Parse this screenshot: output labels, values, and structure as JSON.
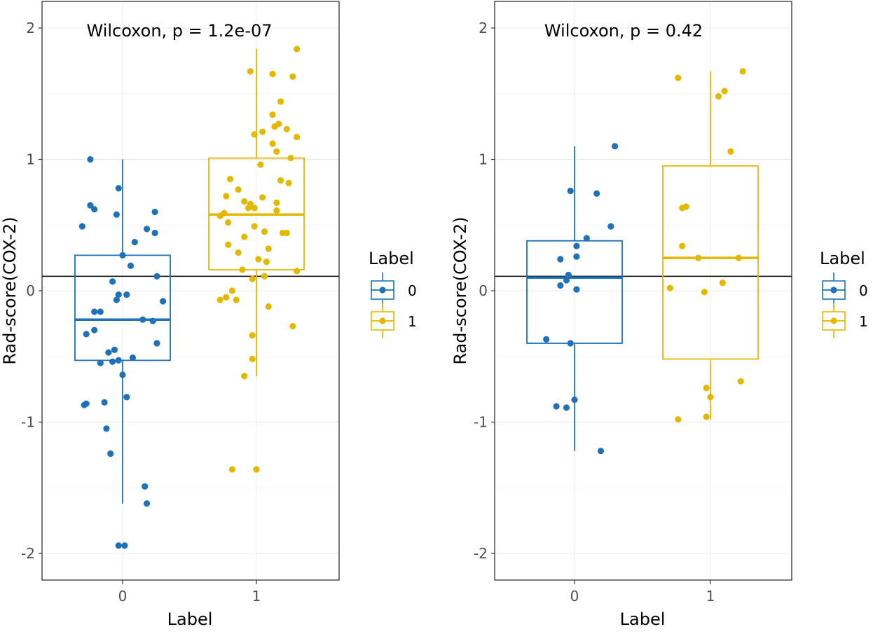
{
  "chart_data": [
    {
      "type": "boxplot",
      "annotation": "Wilcoxon, p = 1.2e-07",
      "xlabel": "Label",
      "ylabel": "Rad-score(COX-2)",
      "ylim": [
        -2.2,
        2.1
      ],
      "yticks": [
        -2,
        -1,
        0,
        1,
        2
      ],
      "ytick_labels": [
        "-2",
        "-1",
        "0",
        "1",
        "2"
      ],
      "categories": [
        "0",
        "1"
      ],
      "reference_line": 0.11,
      "groups": [
        {
          "label": "0",
          "color": "#1f72b8",
          "q1": -0.53,
          "median": -0.22,
          "q3": 0.27,
          "whisker_low": -1.62,
          "whisker_high": 1.0,
          "points": [
            {
              "j": -0.16,
              "y": 1.0
            },
            {
              "j": -0.02,
              "y": 0.78
            },
            {
              "j": -0.16,
              "y": 0.65
            },
            {
              "j": -0.14,
              "y": 0.62
            },
            {
              "j": -0.03,
              "y": 0.58
            },
            {
              "j": 0.16,
              "y": 0.6
            },
            {
              "j": -0.2,
              "y": 0.49
            },
            {
              "j": 0.12,
              "y": 0.47
            },
            {
              "j": 0.16,
              "y": 0.44
            },
            {
              "j": 0.06,
              "y": 0.37
            },
            {
              "j": 0.0,
              "y": 0.27
            },
            {
              "j": 0.04,
              "y": 0.19
            },
            {
              "j": 0.17,
              "y": 0.11
            },
            {
              "j": -0.05,
              "y": 0.07
            },
            {
              "j": -0.02,
              "y": -0.03
            },
            {
              "j": 0.02,
              "y": -0.03
            },
            {
              "j": -0.03,
              "y": -0.07
            },
            {
              "j": 0.2,
              "y": -0.08
            },
            {
              "j": -0.14,
              "y": -0.16
            },
            {
              "j": -0.11,
              "y": -0.16
            },
            {
              "j": 0.1,
              "y": -0.22
            },
            {
              "j": 0.15,
              "y": -0.23
            },
            {
              "j": -0.14,
              "y": -0.3
            },
            {
              "j": -0.18,
              "y": -0.33
            },
            {
              "j": 0.17,
              "y": -0.4
            },
            {
              "j": -0.04,
              "y": -0.45
            },
            {
              "j": -0.07,
              "y": -0.47
            },
            {
              "j": 0.05,
              "y": -0.51
            },
            {
              "j": -0.11,
              "y": -0.55
            },
            {
              "j": -0.02,
              "y": -0.53
            },
            {
              "j": -0.05,
              "y": -0.54
            },
            {
              "j": 0.0,
              "y": -0.64
            },
            {
              "j": 0.02,
              "y": -0.81
            },
            {
              "j": -0.09,
              "y": -0.85
            },
            {
              "j": -0.18,
              "y": -0.86
            },
            {
              "j": -0.19,
              "y": -0.87
            },
            {
              "j": -0.08,
              "y": -1.05
            },
            {
              "j": -0.06,
              "y": -1.24
            },
            {
              "j": 0.11,
              "y": -1.49
            },
            {
              "j": 0.12,
              "y": -1.62
            },
            {
              "j": -0.02,
              "y": -1.94
            },
            {
              "j": 0.01,
              "y": -1.94
            }
          ]
        },
        {
          "label": "1",
          "color": "#e5b800",
          "q1": 0.16,
          "median": 0.58,
          "q3": 1.01,
          "whisker_low": -0.65,
          "whisker_high": 1.84,
          "points": [
            {
              "j": 0.2,
              "y": 1.84
            },
            {
              "j": -0.03,
              "y": 1.67
            },
            {
              "j": 0.08,
              "y": 1.65
            },
            {
              "j": 0.18,
              "y": 1.63
            },
            {
              "j": 0.12,
              "y": 1.44
            },
            {
              "j": 0.08,
              "y": 1.34
            },
            {
              "j": 0.11,
              "y": 1.27
            },
            {
              "j": 0.09,
              "y": 1.25
            },
            {
              "j": 0.15,
              "y": 1.23
            },
            {
              "j": 0.03,
              "y": 1.21
            },
            {
              "j": -0.01,
              "y": 1.19
            },
            {
              "j": 0.2,
              "y": 1.17
            },
            {
              "j": 0.08,
              "y": 1.12
            },
            {
              "j": 0.1,
              "y": 1.06
            },
            {
              "j": 0.17,
              "y": 1.01
            },
            {
              "j": 0.02,
              "y": 0.96
            },
            {
              "j": -0.13,
              "y": 0.85
            },
            {
              "j": 0.12,
              "y": 0.84
            },
            {
              "j": 0.16,
              "y": 0.82
            },
            {
              "j": -0.09,
              "y": 0.77
            },
            {
              "j": -0.15,
              "y": 0.72
            },
            {
              "j": 0.03,
              "y": 0.71
            },
            {
              "j": -0.06,
              "y": 0.68
            },
            {
              "j": 0.1,
              "y": 0.67
            },
            {
              "j": -0.03,
              "y": 0.66
            },
            {
              "j": -0.01,
              "y": 0.63
            },
            {
              "j": -0.04,
              "y": 0.63
            },
            {
              "j": 0.1,
              "y": 0.61
            },
            {
              "j": -0.16,
              "y": 0.59
            },
            {
              "j": -0.18,
              "y": 0.57
            },
            {
              "j": -0.14,
              "y": 0.52
            },
            {
              "j": -0.01,
              "y": 0.49
            },
            {
              "j": 0.04,
              "y": 0.45
            },
            {
              "j": 0.13,
              "y": 0.44
            },
            {
              "j": 0.15,
              "y": 0.44
            },
            {
              "j": -0.06,
              "y": 0.41
            },
            {
              "j": -0.14,
              "y": 0.35
            },
            {
              "j": 0.06,
              "y": 0.32
            },
            {
              "j": -0.09,
              "y": 0.29
            },
            {
              "j": 0.01,
              "y": 0.24
            },
            {
              "j": 0.05,
              "y": 0.22
            },
            {
              "j": -0.07,
              "y": 0.16
            },
            {
              "j": 0.2,
              "y": 0.15
            },
            {
              "j": 0.04,
              "y": 0.11
            },
            {
              "j": -0.02,
              "y": 0.09
            },
            {
              "j": -0.12,
              "y": 0.0
            },
            {
              "j": -0.15,
              "y": -0.05
            },
            {
              "j": -0.18,
              "y": -0.07
            },
            {
              "j": -0.1,
              "y": -0.07
            },
            {
              "j": 0.06,
              "y": -0.12
            },
            {
              "j": 0.18,
              "y": -0.27
            },
            {
              "j": -0.02,
              "y": -0.34
            },
            {
              "j": -0.02,
              "y": -0.52
            },
            {
              "j": -0.06,
              "y": -0.65
            },
            {
              "j": -0.12,
              "y": -1.36
            },
            {
              "j": 0.0,
              "y": -1.36
            }
          ]
        }
      ],
      "legend": {
        "title": "Label",
        "entries": [
          "0",
          "1"
        ],
        "position": "right"
      }
    },
    {
      "type": "boxplot",
      "annotation": "Wilcoxon, p = 0.42",
      "xlabel": "Label",
      "ylabel": "Rad-score(COX-2)",
      "ylim": [
        -2.2,
        2.1
      ],
      "yticks": [
        -2,
        -1,
        0,
        1,
        2
      ],
      "ytick_labels": [
        "-2",
        "-1",
        "0",
        "1",
        "2"
      ],
      "categories": [
        "0",
        "1"
      ],
      "reference_line": 0.11,
      "groups": [
        {
          "label": "0",
          "color": "#1f72b8",
          "q1": -0.4,
          "median": 0.1,
          "q3": 0.38,
          "whisker_low": -1.22,
          "whisker_high": 1.1,
          "points": [
            {
              "j": 0.2,
              "y": 1.1
            },
            {
              "j": -0.02,
              "y": 0.76
            },
            {
              "j": 0.11,
              "y": 0.74
            },
            {
              "j": 0.18,
              "y": 0.49
            },
            {
              "j": 0.06,
              "y": 0.4
            },
            {
              "j": 0.01,
              "y": 0.34
            },
            {
              "j": 0.01,
              "y": 0.26
            },
            {
              "j": -0.07,
              "y": 0.24
            },
            {
              "j": -0.03,
              "y": 0.12
            },
            {
              "j": -0.04,
              "y": 0.08
            },
            {
              "j": -0.07,
              "y": 0.04
            },
            {
              "j": 0.01,
              "y": 0.01
            },
            {
              "j": -0.14,
              "y": -0.37
            },
            {
              "j": -0.02,
              "y": -0.4
            },
            {
              "j": 0.0,
              "y": -0.83
            },
            {
              "j": -0.09,
              "y": -0.88
            },
            {
              "j": -0.04,
              "y": -0.89
            },
            {
              "j": 0.13,
              "y": -1.22
            }
          ]
        },
        {
          "label": "1",
          "color": "#e5b800",
          "q1": -0.52,
          "median": 0.25,
          "q3": 0.95,
          "whisker_low": -0.98,
          "whisker_high": 1.67,
          "points": [
            {
              "j": 0.16,
              "y": 1.67
            },
            {
              "j": -0.16,
              "y": 1.62
            },
            {
              "j": 0.07,
              "y": 1.52
            },
            {
              "j": 0.04,
              "y": 1.48
            },
            {
              "j": 0.1,
              "y": 1.06
            },
            {
              "j": -0.12,
              "y": 0.64
            },
            {
              "j": -0.14,
              "y": 0.63
            },
            {
              "j": -0.14,
              "y": 0.34
            },
            {
              "j": -0.06,
              "y": 0.25
            },
            {
              "j": 0.14,
              "y": 0.25
            },
            {
              "j": 0.06,
              "y": 0.06
            },
            {
              "j": -0.2,
              "y": 0.02
            },
            {
              "j": -0.03,
              "y": -0.01
            },
            {
              "j": 0.15,
              "y": -0.69
            },
            {
              "j": -0.02,
              "y": -0.74
            },
            {
              "j": 0.0,
              "y": -0.81
            },
            {
              "j": -0.02,
              "y": -0.96
            },
            {
              "j": -0.16,
              "y": -0.98
            }
          ]
        }
      ],
      "legend": {
        "title": "Label",
        "entries": [
          "0",
          "1"
        ],
        "position": "right"
      }
    }
  ]
}
